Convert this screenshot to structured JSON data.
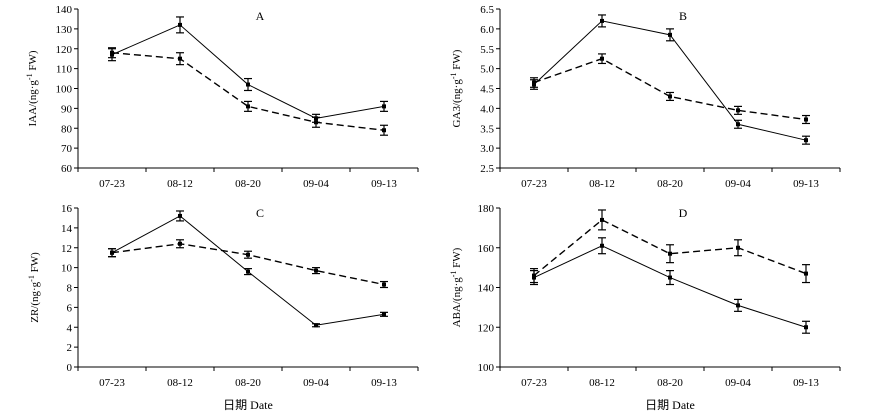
{
  "chart_data": [
    {
      "type": "line",
      "title": "A",
      "ylabel": "IAA/(ng·g⁻¹ FW)",
      "xlabel": "日期 Date",
      "categories": [
        "07-23",
        "08-12",
        "08-20",
        "09-04",
        "09-13"
      ],
      "ylim": [
        60,
        140
      ],
      "yticks": [
        "60",
        "70",
        "80",
        "90",
        "100",
        "110",
        "120",
        "130",
        "140"
      ],
      "series": [
        {
          "name": "solid",
          "style": "solid",
          "values": [
            117,
            132,
            102,
            85,
            91
          ],
          "errors": [
            3,
            4,
            3,
            2,
            2.5
          ]
        },
        {
          "name": "dashed",
          "style": "dashed",
          "values": [
            118,
            115,
            91,
            83,
            79
          ],
          "errors": [
            2.5,
            3,
            2.5,
            2.5,
            2.5
          ]
        }
      ]
    },
    {
      "type": "line",
      "title": "B",
      "ylabel": "GA3/(ng·g⁻¹ FW)",
      "xlabel": "日期 Date",
      "categories": [
        "07-23",
        "08-12",
        "08-20",
        "09-04",
        "09-13"
      ],
      "ylim": [
        2.5,
        6.5
      ],
      "yticks": [
        "2.5",
        "3.0",
        "3.5",
        "4.0",
        "4.5",
        "5.0",
        "5.5",
        "6.0",
        "6.5"
      ],
      "series": [
        {
          "name": "solid",
          "style": "solid",
          "values": [
            4.6,
            6.2,
            5.85,
            3.6,
            3.2
          ],
          "errors": [
            0.12,
            0.15,
            0.15,
            0.1,
            0.1
          ]
        },
        {
          "name": "dashed",
          "style": "dashed",
          "values": [
            4.65,
            5.25,
            4.3,
            3.95,
            3.72
          ],
          "errors": [
            0.12,
            0.12,
            0.1,
            0.1,
            0.1
          ]
        }
      ]
    },
    {
      "type": "line",
      "title": "C",
      "ylabel": "ZR/(ng·g⁻¹ FW)",
      "xlabel": "日期 Date",
      "categories": [
        "07-23",
        "08-12",
        "08-20",
        "09-04",
        "09-13"
      ],
      "ylim": [
        0,
        16
      ],
      "yticks": [
        "0",
        "2",
        "4",
        "6",
        "8",
        "10",
        "12",
        "14",
        "16"
      ],
      "series": [
        {
          "name": "solid",
          "style": "solid",
          "values": [
            11.5,
            15.2,
            9.6,
            4.2,
            5.3
          ],
          "errors": [
            0.4,
            0.5,
            0.3,
            0.15,
            0.2
          ]
        },
        {
          "name": "dashed",
          "style": "dashed",
          "values": [
            11.5,
            12.4,
            11.3,
            9.7,
            8.3
          ],
          "errors": [
            0.4,
            0.4,
            0.35,
            0.3,
            0.3
          ]
        }
      ]
    },
    {
      "type": "line",
      "title": "D",
      "ylabel": "ABA/(ng·g⁻¹ FW)",
      "xlabel": "日期 Date",
      "categories": [
        "07-23",
        "08-12",
        "08-20",
        "09-04",
        "09-13"
      ],
      "ylim": [
        100,
        180
      ],
      "yticks": [
        "100",
        "120",
        "140",
        "160",
        "180"
      ],
      "series": [
        {
          "name": "solid",
          "style": "solid",
          "values": [
            145,
            161,
            145,
            131,
            120
          ],
          "errors": [
            3.5,
            4,
            3.5,
            3,
            3
          ]
        },
        {
          "name": "dashed",
          "style": "dashed",
          "values": [
            146,
            174,
            157,
            160,
            147
          ],
          "errors": [
            3.5,
            5,
            4.5,
            4,
            4.5
          ]
        }
      ]
    }
  ]
}
